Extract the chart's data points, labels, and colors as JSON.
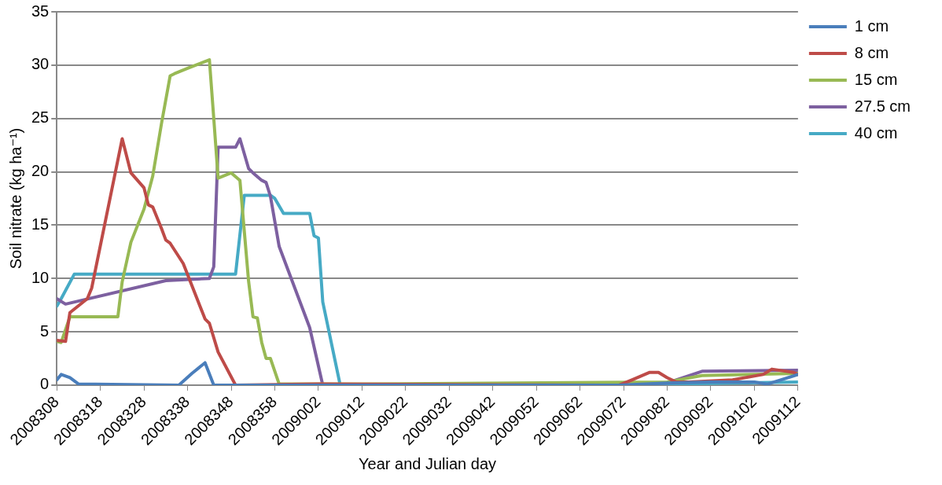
{
  "chart_data": {
    "type": "line",
    "xlabel": "Year and Julian day",
    "ylabel": "Soil nitrate (kg ha⁻¹)",
    "xlim": [
      "2008-11-03",
      "2009-04-22"
    ],
    "xticks": [
      {
        "value": "2008-11-03",
        "label": "2008308"
      },
      {
        "value": "2008-11-13",
        "label": "2008318"
      },
      {
        "value": "2008-11-23",
        "label": "2008328"
      },
      {
        "value": "2008-12-03",
        "label": "2008338"
      },
      {
        "value": "2008-12-13",
        "label": "2008348"
      },
      {
        "value": "2008-12-23",
        "label": "2008358"
      },
      {
        "value": "2009-01-02",
        "label": "2009002"
      },
      {
        "value": "2009-01-12",
        "label": "2009012"
      },
      {
        "value": "2009-01-22",
        "label": "2009022"
      },
      {
        "value": "2009-02-01",
        "label": "2009032"
      },
      {
        "value": "2009-02-11",
        "label": "2009042"
      },
      {
        "value": "2009-02-21",
        "label": "2009052"
      },
      {
        "value": "2009-03-03",
        "label": "2009062"
      },
      {
        "value": "2009-03-13",
        "label": "2009072"
      },
      {
        "value": "2009-03-23",
        "label": "2009082"
      },
      {
        "value": "2009-04-02",
        "label": "2009092"
      },
      {
        "value": "2009-04-12",
        "label": "2009102"
      },
      {
        "value": "2009-04-22",
        "label": "2009112"
      }
    ],
    "ylim": [
      0,
      35
    ],
    "yticks": [
      0,
      5,
      10,
      15,
      20,
      25,
      30,
      35
    ],
    "grid": "y",
    "legend": "right",
    "marker": "none",
    "series": [
      {
        "name": "1 cm",
        "color": "#4a7ebb",
        "x": [
          "2008-11-03",
          "2008-11-04",
          "2008-11-06",
          "2008-11-08",
          "2008-12-01",
          "2008-12-04",
          "2008-12-07",
          "2008-12-09",
          "2009-01-02",
          "2009-03-12",
          "2009-03-23",
          "2009-04-02",
          "2009-04-12",
          "2009-04-15",
          "2009-04-22"
        ],
        "values": [
          0.5,
          1.0,
          0.7,
          0.1,
          0,
          1.1,
          2.1,
          0,
          0,
          0,
          0.2,
          0.3,
          0.3,
          0.1,
          1.0
        ]
      },
      {
        "name": "8 cm",
        "color": "#be4b48",
        "x": [
          "2008-11-03",
          "2008-11-05",
          "2008-11-06",
          "2008-11-10",
          "2008-11-11",
          "2008-11-18",
          "2008-11-20",
          "2008-11-23",
          "2008-11-24",
          "2008-11-25",
          "2008-11-27",
          "2008-11-28",
          "2008-11-29",
          "2008-12-02",
          "2008-12-07",
          "2008-12-08",
          "2008-12-10",
          "2008-12-14",
          "2009-01-02",
          "2009-03-12",
          "2009-03-15",
          "2009-03-19",
          "2009-03-21",
          "2009-03-23",
          "2009-03-25",
          "2009-03-28",
          "2009-04-07",
          "2009-04-14",
          "2009-04-16",
          "2009-04-21",
          "2009-04-22"
        ],
        "values": [
          4.2,
          4.1,
          6.8,
          8.1,
          9.1,
          23.1,
          19.9,
          18.5,
          16.9,
          16.7,
          14.7,
          13.6,
          13.3,
          11.4,
          6.2,
          5.8,
          3.1,
          0,
          0.1,
          0,
          0.5,
          1.2,
          1.2,
          0.7,
          0.3,
          0.3,
          0.5,
          1.0,
          1.5,
          1.2,
          1.0
        ]
      },
      {
        "name": "15 cm",
        "color": "#98b954",
        "x": [
          "2008-11-03",
          "2008-11-04",
          "2008-11-06",
          "2008-11-17",
          "2008-11-18",
          "2008-11-20",
          "2008-11-23",
          "2008-11-25",
          "2008-11-27",
          "2008-11-29",
          "2008-11-30",
          "2008-12-03",
          "2008-12-08",
          "2008-12-09",
          "2008-12-10",
          "2008-12-13",
          "2008-12-15",
          "2008-12-17",
          "2008-12-18",
          "2008-12-19",
          "2008-12-20",
          "2008-12-21",
          "2008-12-22",
          "2008-12-24",
          "2009-01-12",
          "2009-03-23",
          "2009-03-31",
          "2009-04-22"
        ],
        "values": [
          4.1,
          4.0,
          6.4,
          6.4,
          9.7,
          13.4,
          16.5,
          19.6,
          24.5,
          29.0,
          29.2,
          29.7,
          30.5,
          25,
          19.4,
          19.9,
          19.2,
          9.7,
          6.4,
          6.3,
          4.0,
          2.5,
          2.5,
          0.1,
          0.1,
          0.3,
          0.9,
          1.1
        ]
      },
      {
        "name": "27.5 cm",
        "color": "#7d60a0",
        "x": [
          "2008-11-03",
          "2008-11-05",
          "2008-11-28",
          "2008-12-08",
          "2008-12-09",
          "2008-12-10",
          "2008-12-14",
          "2008-12-15",
          "2008-12-17",
          "2008-12-18",
          "2008-12-20",
          "2008-12-21",
          "2008-12-22",
          "2008-12-24",
          "2008-12-31",
          "2009-01-03",
          "2009-03-23",
          "2009-03-31",
          "2009-04-22"
        ],
        "values": [
          8.1,
          7.6,
          9.8,
          10.0,
          11.1,
          22.3,
          22.3,
          23.1,
          20.3,
          19.9,
          19.2,
          19.0,
          17.7,
          13.0,
          5.4,
          0,
          0.2,
          1.3,
          1.4
        ]
      },
      {
        "name": "40 cm",
        "color": "#46aac5",
        "x": [
          "2008-11-03",
          "2008-11-04",
          "2008-11-07",
          "2008-12-14",
          "2008-12-16",
          "2008-12-22",
          "2008-12-23",
          "2008-12-25",
          "2008-12-31",
          "2009-01-01",
          "2009-01-02",
          "2009-01-03",
          "2009-01-07",
          "2009-03-23",
          "2009-04-22"
        ],
        "values": [
          7.4,
          8.1,
          10.4,
          10.4,
          17.8,
          17.8,
          17.5,
          16.1,
          16.1,
          14.0,
          13.8,
          7.8,
          0,
          0.1,
          0.3
        ]
      }
    ]
  }
}
